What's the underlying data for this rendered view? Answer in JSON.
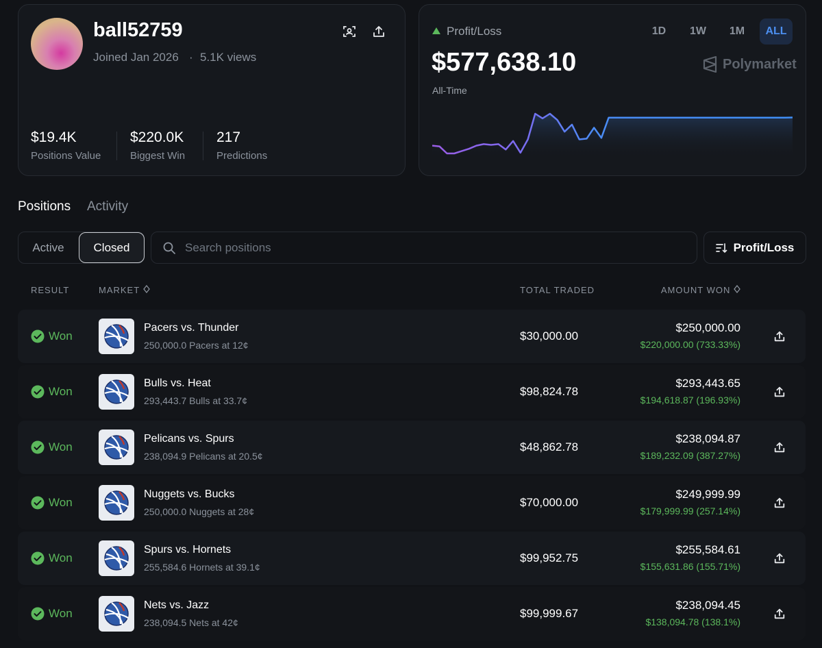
{
  "profile": {
    "username": "ball52759",
    "joined": "Joined Jan 2026",
    "separator": "·",
    "views": "5.1K views",
    "stats": [
      {
        "value": "$19.4K",
        "label": "Positions Value"
      },
      {
        "value": "$220.0K",
        "label": "Biggest Win"
      },
      {
        "value": "217",
        "label": "Predictions"
      }
    ]
  },
  "pnl": {
    "label": "Profit/Loss",
    "amount": "$577,638.10",
    "period": "All-Time",
    "ranges": [
      "1D",
      "1W",
      "1M",
      "ALL"
    ],
    "active_range": 3,
    "brand": "Polymarket",
    "chart": {
      "values": [
        144000,
        132000,
        24000,
        24000,
        60000,
        96000,
        144000,
        168000,
        156000,
        168000,
        84000,
        216000,
        36000,
        240000,
        636000,
        564000,
        636000,
        540000,
        360000,
        468000,
        240000,
        252000,
        420000,
        264000,
        576000,
        576000,
        576000,
        576000,
        576000,
        576000,
        576000,
        576000,
        576000,
        576000,
        576000,
        576000,
        576000,
        576000,
        576000,
        576000,
        576000,
        576000,
        576000,
        576000,
        576000,
        576000,
        576000,
        576000,
        576000,
        577638.1
      ]
    }
  },
  "tabs": [
    "Positions",
    "Activity"
  ],
  "filters": [
    "Active",
    "Closed"
  ],
  "active_filter": 1,
  "search_placeholder": "Search positions",
  "sort": "Profit/Loss",
  "table": {
    "headers": [
      "RESULT",
      "MARKET",
      "TOTAL TRADED",
      "AMOUNT WON"
    ],
    "rows": [
      {
        "result": "Won",
        "market": "Pacers vs. Thunder",
        "detail": "250,000.0 Pacers at 12¢",
        "total_traded": "$30,000.00",
        "amount_won": "$250,000.00",
        "profit": "$220,000.00 (733.33%)"
      },
      {
        "result": "Won",
        "market": "Bulls vs. Heat",
        "detail": "293,443.7 Bulls at 33.7¢",
        "total_traded": "$98,824.78",
        "amount_won": "$293,443.65",
        "profit": "$194,618.87 (196.93%)"
      },
      {
        "result": "Won",
        "market": "Pelicans vs. Spurs",
        "detail": "238,094.9 Pelicans at 20.5¢",
        "total_traded": "$48,862.78",
        "amount_won": "$238,094.87",
        "profit": "$189,232.09 (387.27%)"
      },
      {
        "result": "Won",
        "market": "Nuggets vs. Bucks",
        "detail": "250,000.0 Nuggets at 28¢",
        "total_traded": "$70,000.00",
        "amount_won": "$249,999.99",
        "profit": "$179,999.99 (257.14%)"
      },
      {
        "result": "Won",
        "market": "Spurs vs. Hornets",
        "detail": "255,584.6 Hornets at 39.1¢",
        "total_traded": "$99,952.75",
        "amount_won": "$255,584.61",
        "profit": "$155,631.86 (155.71%)"
      },
      {
        "result": "Won",
        "market": "Nets vs. Jazz",
        "detail": "238,094.5 Nets at 42¢",
        "total_traded": "$99,999.67",
        "amount_won": "$238,094.45",
        "profit": "$138,094.78 (138.1%)"
      }
    ]
  }
}
